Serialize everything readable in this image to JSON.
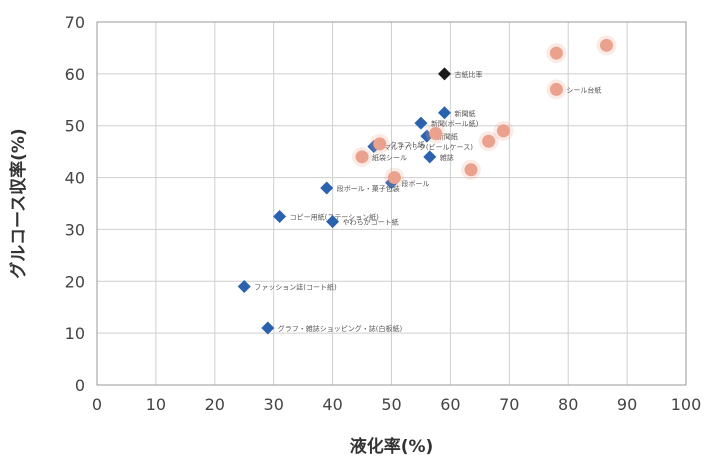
{
  "chart_data": {
    "type": "scatter",
    "xlabel": "液化率(%)",
    "ylabel": "グルコース収率(%)",
    "xlim": [
      0,
      100
    ],
    "ylim": [
      0,
      70
    ],
    "xticks": [
      "0",
      "10",
      "20",
      "30",
      "40",
      "50",
      "60",
      "70",
      "80",
      "90",
      "100"
    ],
    "yticks": [
      "0",
      "10",
      "20",
      "30",
      "40",
      "50",
      "60",
      "70"
    ],
    "grid": true,
    "colors": {
      "blue": "#2a62b0",
      "black": "#1a1a1a",
      "pink": "#eaa28f"
    },
    "series": [
      {
        "marker": "diamond",
        "color": "#2a62b0",
        "points": [
          {
            "x": 25,
            "y": 19,
            "label": "ファッション誌(コート紙)"
          },
          {
            "x": 29,
            "y": 11,
            "label": "グラフ・雑誌ショッピング・誌(白板紙)"
          },
          {
            "x": 31,
            "y": 32.5,
            "label": "コピー用紙(ステーション紙)"
          },
          {
            "x": 39,
            "y": 38,
            "label": "段ボール・菓子包装"
          },
          {
            "x": 40,
            "y": 31.5,
            "label": "やわらかコート紙"
          },
          {
            "x": 47,
            "y": 46,
            "label": "マルチパック(ビールケース)"
          },
          {
            "x": 50,
            "y": 39,
            "label": "段ボール"
          },
          {
            "x": 55,
            "y": 50.5,
            "label": "新聞(ボール紙)"
          },
          {
            "x": 56,
            "y": 48,
            "label": "新聞紙"
          },
          {
            "x": 56.5,
            "y": 44,
            "label": "雑誌"
          },
          {
            "x": 59,
            "y": 52.5,
            "label": "新聞紙"
          }
        ]
      },
      {
        "marker": "diamond",
        "color": "#1a1a1a",
        "points": [
          {
            "x": 59,
            "y": 60,
            "label": "古紙比率"
          }
        ]
      },
      {
        "marker": "circle",
        "color": "#eaa28f",
        "points": [
          {
            "x": 45,
            "y": 44,
            "label": "紙袋シール"
          },
          {
            "x": 48,
            "y": 46.5,
            "label": "クラフト紙"
          },
          {
            "x": 50.5,
            "y": 40,
            "label": ""
          },
          {
            "x": 57.5,
            "y": 48.5,
            "label": ""
          },
          {
            "x": 63.5,
            "y": 41.5,
            "label": ""
          },
          {
            "x": 66.5,
            "y": 47,
            "label": ""
          },
          {
            "x": 69,
            "y": 49,
            "label": ""
          },
          {
            "x": 78,
            "y": 57,
            "label": "シール台紙"
          },
          {
            "x": 78,
            "y": 64,
            "label": ""
          },
          {
            "x": 86.5,
            "y": 65.5,
            "label": ""
          }
        ]
      }
    ]
  }
}
